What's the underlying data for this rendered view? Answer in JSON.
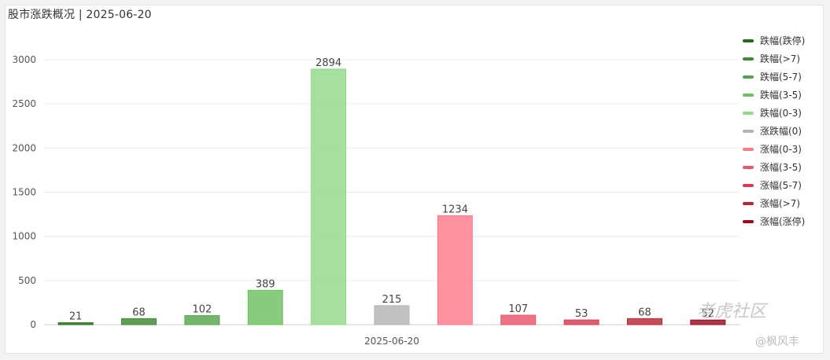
{
  "chart": {
    "title": "股市涨跌概况 | 2025-06-20"
  },
  "chart_data": {
    "type": "bar",
    "title": "股市涨跌概况 | 2025-06-20",
    "xlabel": "2025-06-20",
    "ylabel": "",
    "ylim": [
      0,
      3000
    ],
    "yticks": [
      0,
      500,
      1000,
      1500,
      2000,
      2500,
      3000
    ],
    "grid": true,
    "legend_position": "right",
    "series": [
      {
        "name": "跌幅(跌停)",
        "value": 21,
        "color": "#1f6e12"
      },
      {
        "name": "跌幅(>7)",
        "value": 68,
        "color": "#3e8a35"
      },
      {
        "name": "跌幅(5-7)",
        "value": 102,
        "color": "#55a64a"
      },
      {
        "name": "跌幅(3-5)",
        "value": 389,
        "color": "#6cc15f"
      },
      {
        "name": "跌幅(0-3)",
        "value": 2894,
        "color": "#93d98a"
      },
      {
        "name": "涨跌幅(0)",
        "value": 215,
        "color": "#b3b3b3"
      },
      {
        "name": "涨幅(0-3)",
        "value": 1234,
        "color": "#ff7a8a"
      },
      {
        "name": "涨幅(3-5)",
        "value": 107,
        "color": "#e8566a"
      },
      {
        "name": "涨幅(5-7)",
        "value": 53,
        "color": "#d63d52"
      },
      {
        "name": "涨幅(>7)",
        "value": 68,
        "color": "#b82638"
      },
      {
        "name": "涨幅(涨停)",
        "value": 52,
        "color": "#9b0a1e"
      }
    ]
  },
  "watermark": {
    "brand": "老虎社区",
    "user": "@枫风丰"
  }
}
